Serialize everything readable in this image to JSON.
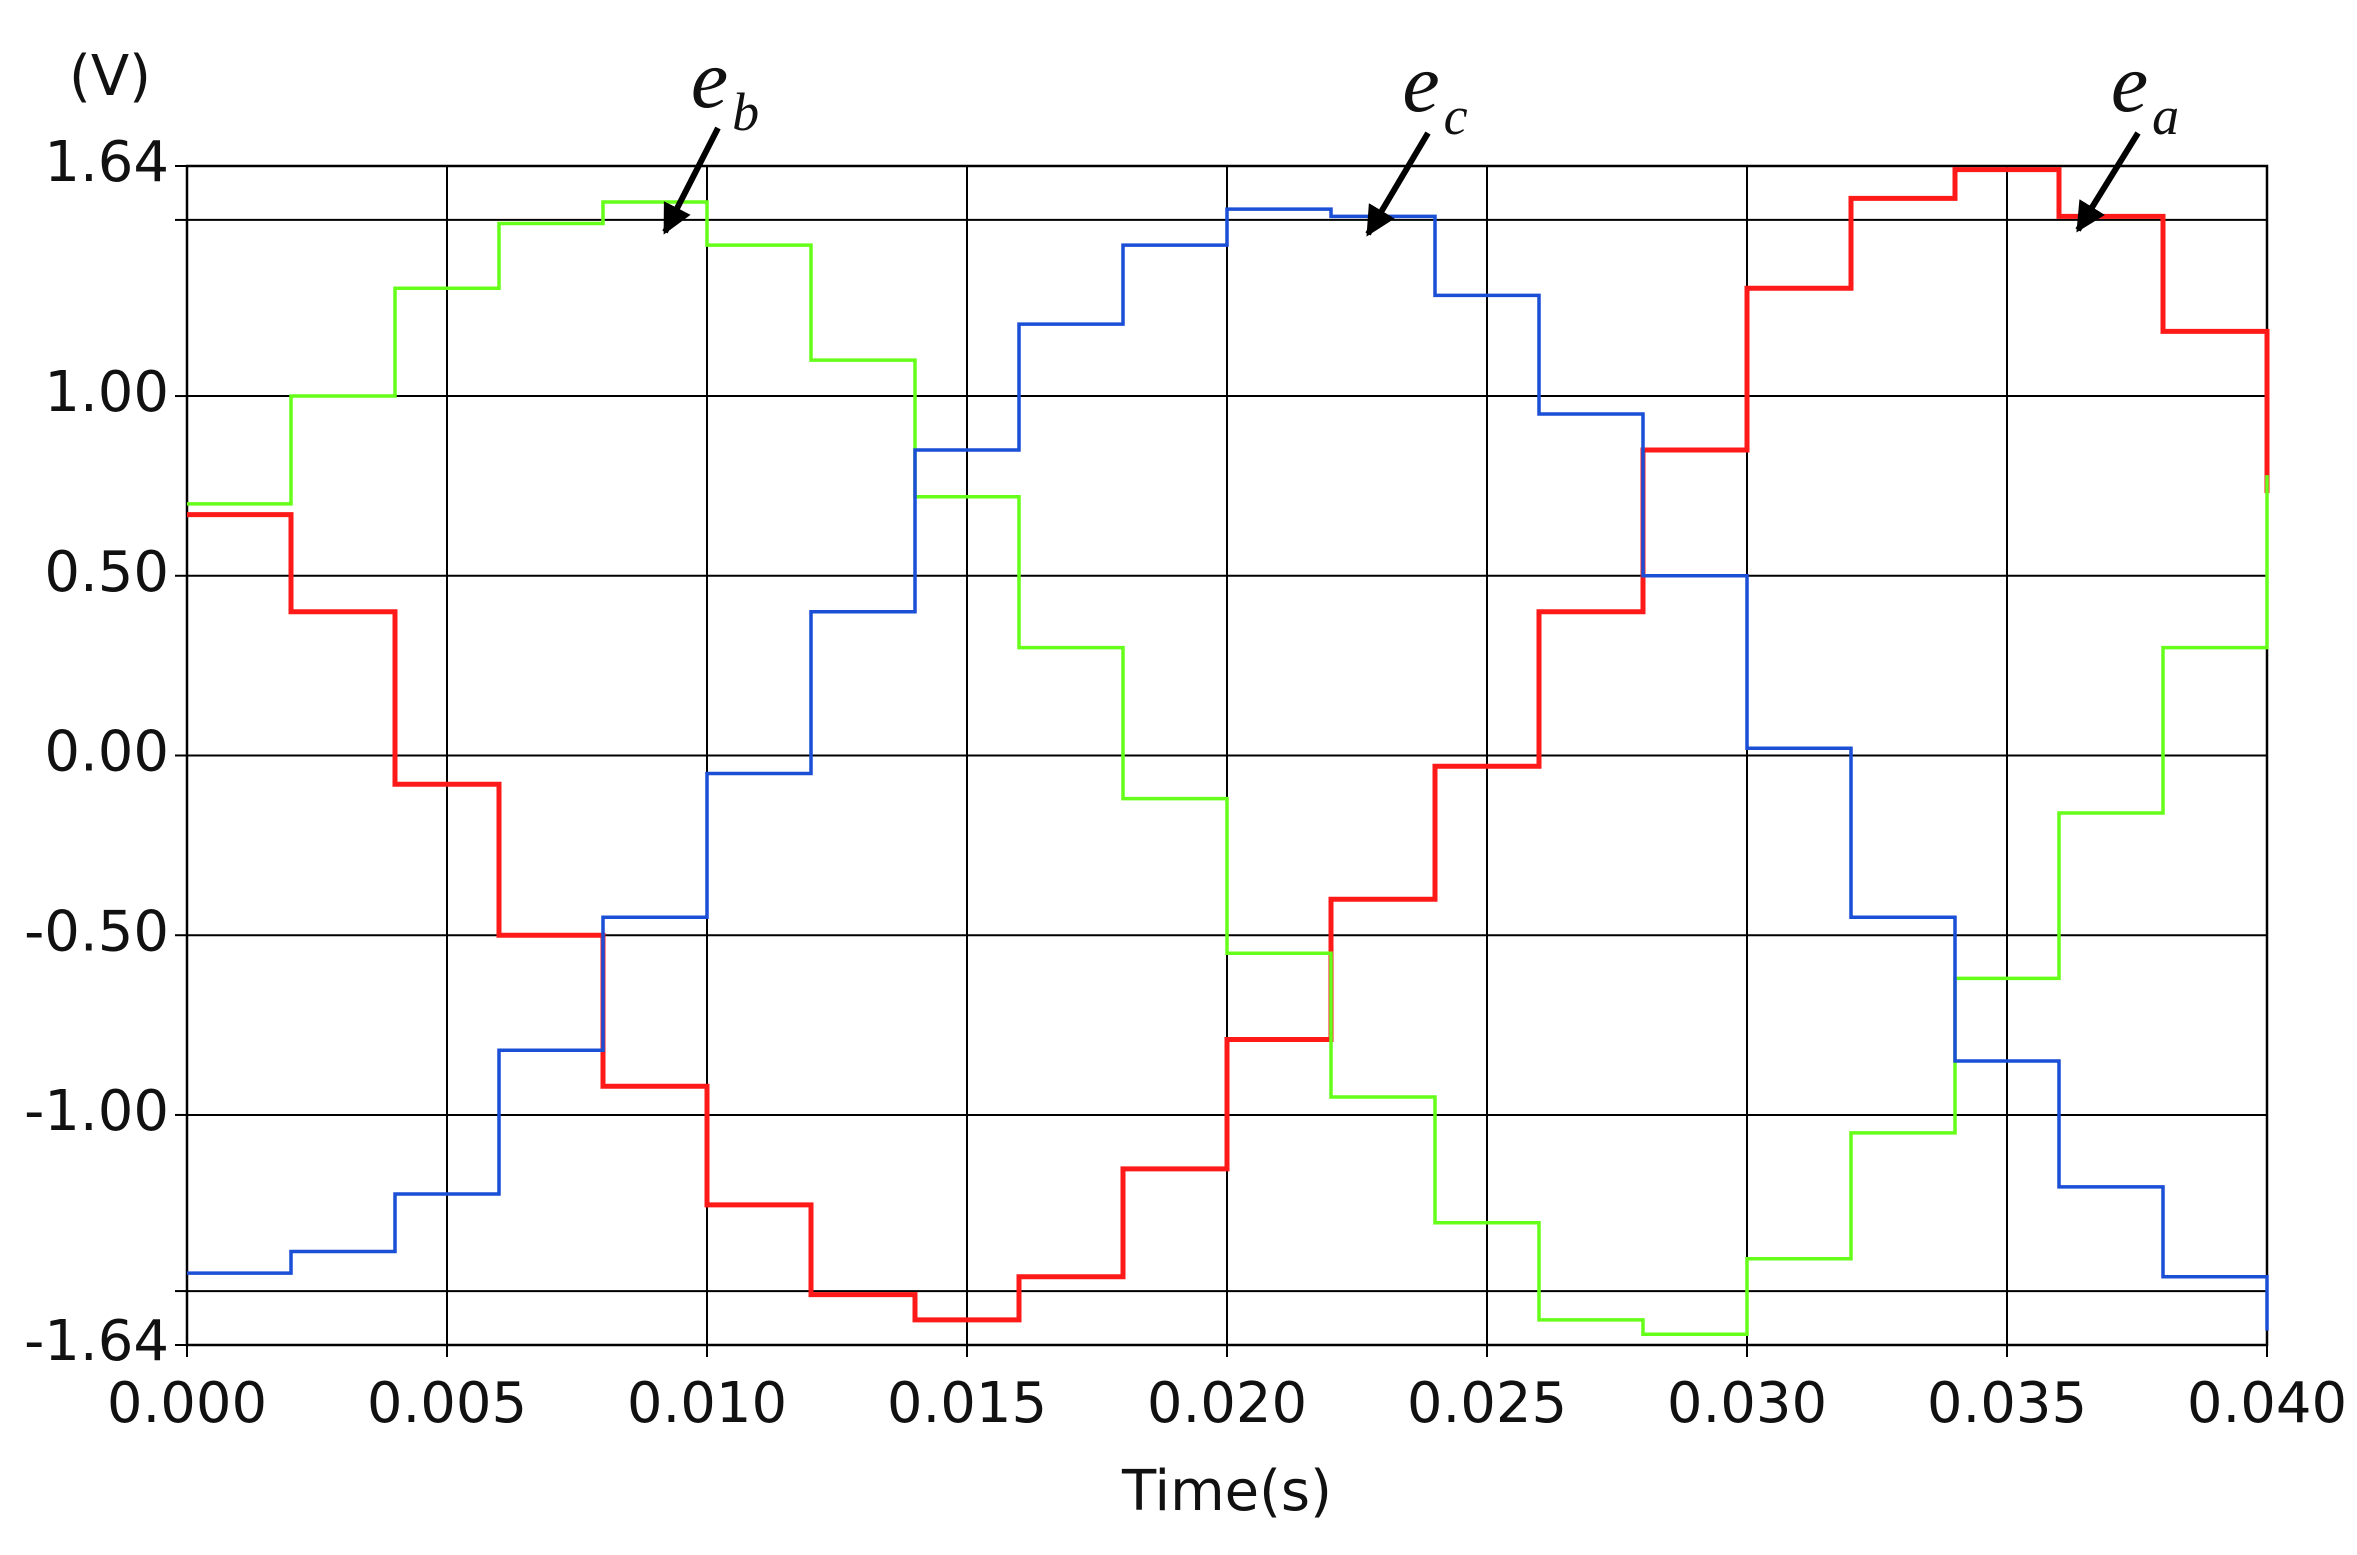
{
  "chart_data": {
    "type": "line",
    "y_unit_label": "(V)",
    "x_label": "Time(s)",
    "x": [
      0,
      0.002,
      0.004,
      0.006,
      0.008,
      0.01,
      0.012,
      0.014,
      0.016,
      0.018,
      0.02,
      0.022,
      0.024,
      0.026,
      0.028,
      0.03,
      0.032,
      0.034,
      0.036,
      0.038,
      0.04
    ],
    "series": [
      {
        "name": "e_a",
        "color": "#ff1a1a",
        "values": [
          0.67,
          0.4,
          -0.08,
          -0.5,
          -0.92,
          -1.25,
          -1.5,
          -1.57,
          -1.45,
          -1.15,
          -0.79,
          -0.4,
          -0.03,
          0.4,
          0.85,
          1.3,
          1.55,
          1.63,
          1.5,
          1.18,
          0.73
        ]
      },
      {
        "name": "e_b",
        "color": "#66ff1a",
        "values": [
          0.7,
          1.0,
          1.3,
          1.48,
          1.54,
          1.42,
          1.1,
          0.72,
          0.3,
          -0.12,
          -0.55,
          -0.95,
          -1.3,
          -1.57,
          -1.61,
          -1.4,
          -1.05,
          -0.62,
          -0.16,
          0.3,
          0.78
        ]
      },
      {
        "name": "e_c",
        "color": "#1a4fd6",
        "values": [
          -1.44,
          -1.38,
          -1.22,
          -0.82,
          -0.45,
          -0.05,
          0.4,
          0.85,
          1.2,
          1.42,
          1.52,
          1.5,
          1.28,
          0.95,
          0.5,
          0.02,
          -0.45,
          -0.85,
          -1.2,
          -1.45,
          -1.6
        ]
      }
    ],
    "annotations": [
      {
        "text": "e",
        "subscript": "b"
      },
      {
        "text": "e",
        "subscript": "c"
      },
      {
        "text": "e",
        "subscript": "a"
      }
    ],
    "xlim": [
      0,
      0.04
    ],
    "xticks": [
      {
        "value": 0,
        "label": "0.000"
      },
      {
        "value": 0.005,
        "label": "0.005"
      },
      {
        "value": 0.01,
        "label": "0.010"
      },
      {
        "value": 0.015,
        "label": "0.015"
      },
      {
        "value": 0.02,
        "label": "0.020"
      },
      {
        "value": 0.025,
        "label": "0.025"
      },
      {
        "value": 0.03,
        "label": "0.030"
      },
      {
        "value": 0.035,
        "label": "0.035"
      },
      {
        "value": 0.04,
        "label": "0.040"
      }
    ],
    "ylim": [
      -1.64,
      1.64
    ],
    "yticks": [
      -1.64,
      {
        "value": -1,
        "label": "-1.00"
      },
      {
        "value": -0.5,
        "label": "-0.50"
      },
      {
        "value": 0,
        "label": "0.00"
      },
      {
        "value": 0.5,
        "label": "0.50"
      },
      {
        "value": 1,
        "label": "1.00"
      },
      1.64
    ],
    "extra_hlines": [
      1.49,
      -1.49
    ],
    "grid": true
  }
}
